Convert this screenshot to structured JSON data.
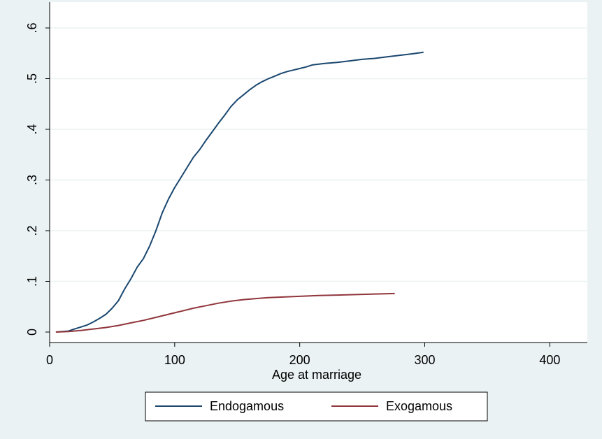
{
  "chart_data": {
    "type": "line",
    "xlabel": "Age at marriage",
    "ylabel": "",
    "xlim": [
      0,
      430
    ],
    "ylim": [
      0,
      0.6
    ],
    "x_ticks": [
      0,
      100,
      200,
      300,
      400
    ],
    "x_tick_labels": [
      "0",
      "100",
      "200",
      "300",
      "400"
    ],
    "y_ticks": [
      0,
      0.1,
      0.2,
      0.3,
      0.4,
      0.5,
      0.6
    ],
    "y_tick_labels": [
      "0",
      ".1",
      ".2",
      ".3",
      ".4",
      ".5",
      ".6"
    ],
    "grid": "horizontal",
    "legend_position": "bottom",
    "series": [
      {
        "name": "Endogamous",
        "color": "#1a476f",
        "x": [
          5,
          15,
          20,
          25,
          30,
          35,
          40,
          45,
          50,
          55,
          60,
          65,
          70,
          75,
          80,
          85,
          90,
          95,
          100,
          105,
          110,
          115,
          120,
          125,
          130,
          135,
          140,
          145,
          150,
          155,
          160,
          165,
          170,
          175,
          180,
          185,
          190,
          195,
          200,
          205,
          210,
          220,
          230,
          240,
          250,
          260,
          270,
          280,
          290,
          299
        ],
        "values": [
          0.0,
          0.002,
          0.006,
          0.01,
          0.014,
          0.02,
          0.027,
          0.035,
          0.047,
          0.062,
          0.085,
          0.105,
          0.128,
          0.145,
          0.17,
          0.2,
          0.235,
          0.262,
          0.285,
          0.305,
          0.325,
          0.345,
          0.36,
          0.378,
          0.395,
          0.412,
          0.428,
          0.445,
          0.458,
          0.468,
          0.478,
          0.487,
          0.494,
          0.5,
          0.505,
          0.51,
          0.514,
          0.517,
          0.52,
          0.523,
          0.527,
          0.53,
          0.532,
          0.535,
          0.538,
          0.54,
          0.543,
          0.546,
          0.549,
          0.552
        ]
      },
      {
        "name": "Exogamous",
        "color": "#90353b",
        "x": [
          5,
          15,
          25,
          35,
          45,
          55,
          65,
          75,
          85,
          95,
          105,
          115,
          125,
          135,
          145,
          155,
          165,
          175,
          185,
          195,
          205,
          215,
          230,
          245,
          260,
          276
        ],
        "values": [
          0.0,
          0.001,
          0.003,
          0.006,
          0.009,
          0.013,
          0.018,
          0.023,
          0.029,
          0.035,
          0.041,
          0.047,
          0.052,
          0.057,
          0.061,
          0.064,
          0.066,
          0.068,
          0.069,
          0.07,
          0.071,
          0.072,
          0.073,
          0.074,
          0.075,
          0.076
        ]
      }
    ]
  }
}
